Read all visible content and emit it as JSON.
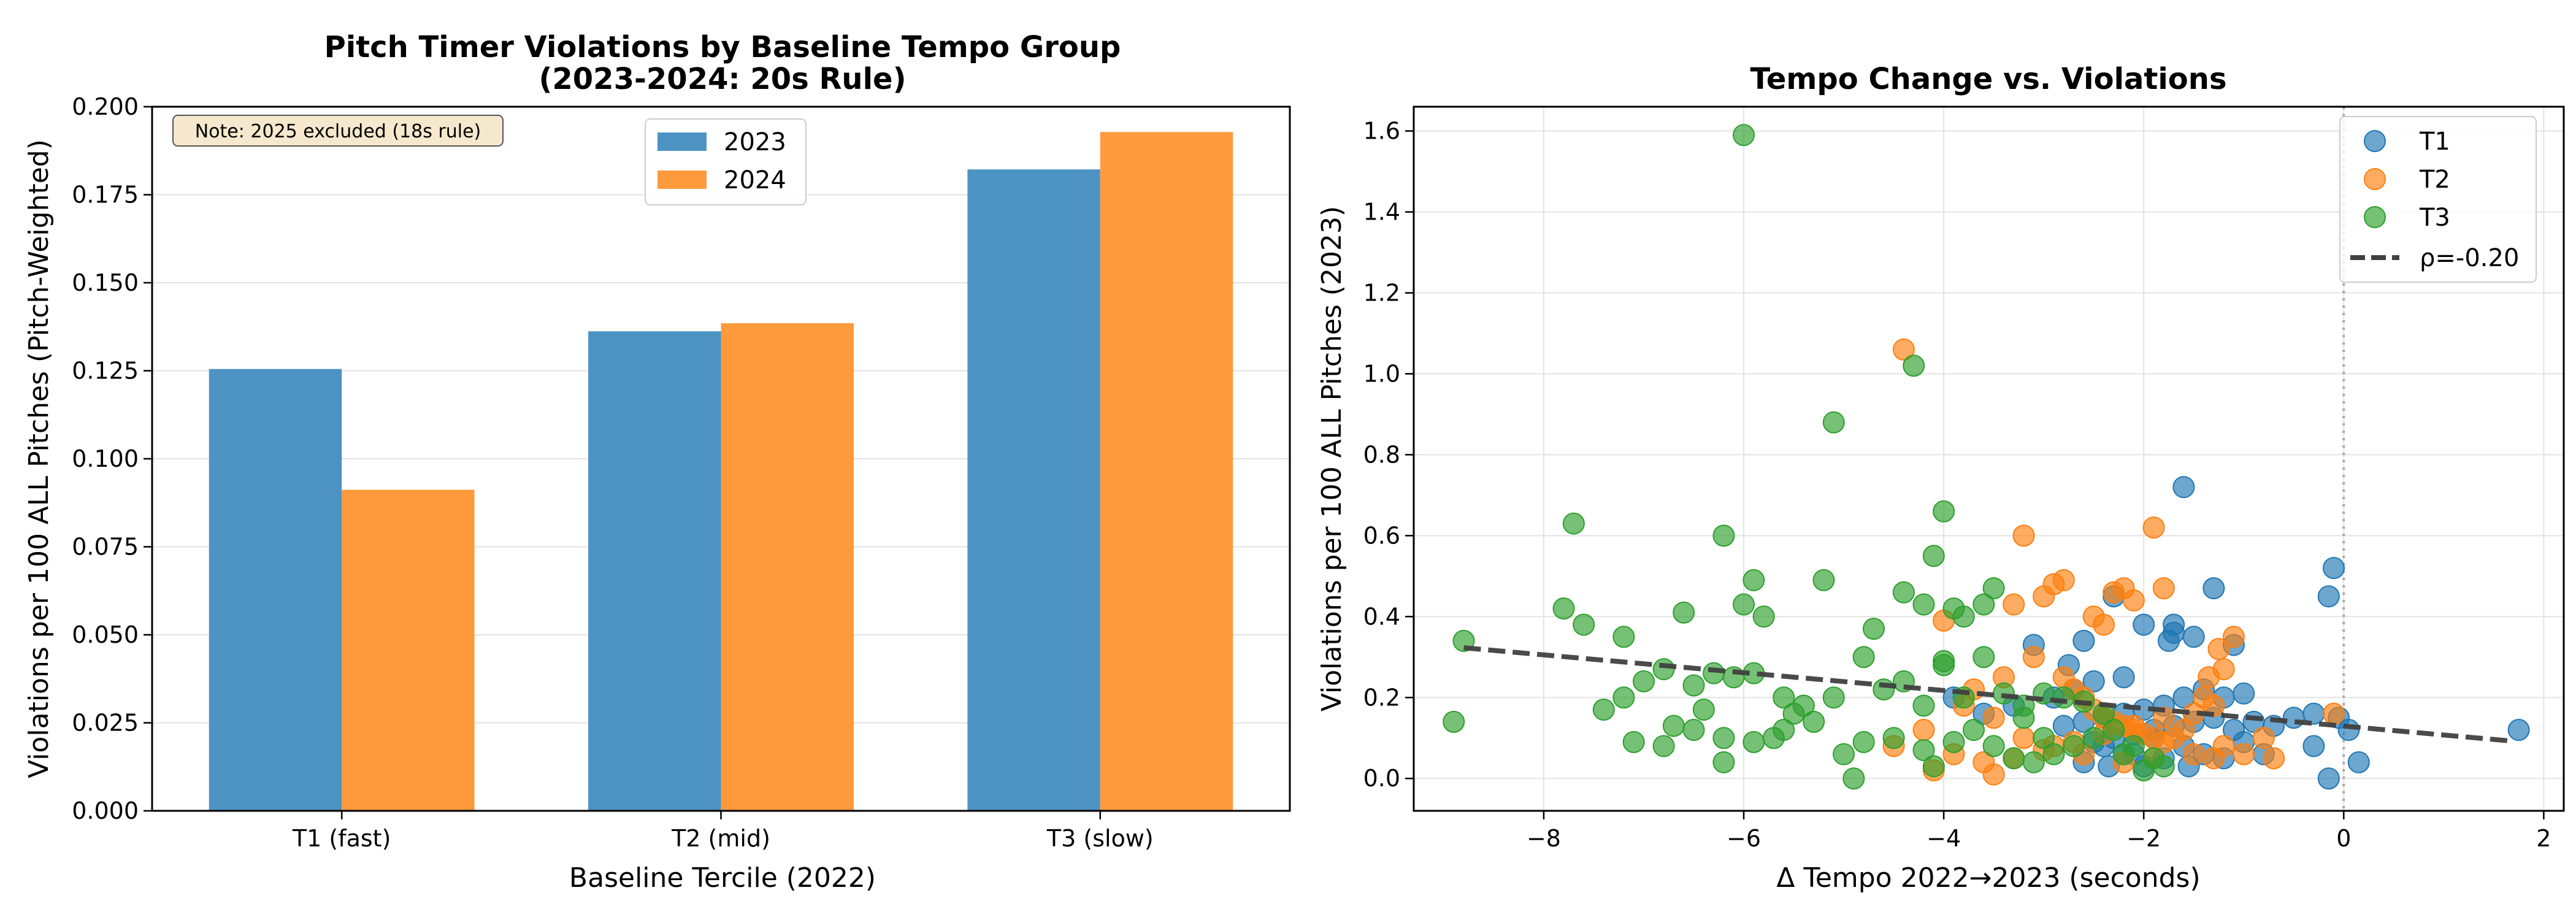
{
  "chart_data": [
    {
      "type": "bar",
      "title": "Pitch Timer Violations by Baseline Tempo Group",
      "subtitle": "(2023-2024: 20s Rule)",
      "xlabel": "Baseline Tercile (2022)",
      "ylabel": "Violations per 100 ALL Pitches (Pitch-Weighted)",
      "categories": [
        "T1 (fast)",
        "T2 (mid)",
        "T3 (slow)"
      ],
      "series": [
        {
          "name": "2023",
          "color": "#4c93c4",
          "values": [
            0.1255,
            0.1362,
            0.1822
          ]
        },
        {
          "name": "2024",
          "color": "#ff9a3c",
          "values": [
            0.0912,
            0.1385,
            0.1928
          ]
        }
      ],
      "ylim": [
        0,
        0.2
      ],
      "yticks": [
        "0.000",
        "0.025",
        "0.050",
        "0.075",
        "0.100",
        "0.125",
        "0.150",
        "0.175",
        "0.200"
      ],
      "grid": true,
      "legend": "upper center",
      "annotation": "Note: 2025 excluded (18s rule)"
    },
    {
      "type": "scatter",
      "title": "Tempo Change vs. Violations",
      "xlabel": "Δ Tempo 2022→2023 (seconds)",
      "ylabel": "Violations per 100 ALL Pitches (2023)",
      "xlim": [
        -9.3,
        2.2
      ],
      "ylim": [
        -0.08,
        1.66
      ],
      "xticks": [
        "−8",
        "−6",
        "−4",
        "−2",
        "0",
        "2"
      ],
      "yticks": [
        "0.0",
        "0.2",
        "0.4",
        "0.6",
        "0.8",
        "1.0",
        "1.2",
        "1.4",
        "1.6"
      ],
      "grid": true,
      "legend": "upper right",
      "series": [
        {
          "name": "T1",
          "color": "#1f77b4",
          "points": [
            [
              -1.6,
              0.72
            ],
            [
              -0.1,
              0.52
            ],
            [
              -0.15,
              0.45
            ],
            [
              -1.3,
              0.47
            ],
            [
              -1.7,
              0.38
            ],
            [
              -1.7,
              0.36
            ],
            [
              -1.75,
              0.34
            ],
            [
              -2.0,
              0.38
            ],
            [
              -2.3,
              0.45
            ],
            [
              -2.6,
              0.34
            ],
            [
              -2.75,
              0.28
            ],
            [
              -3.1,
              0.33
            ],
            [
              -1.5,
              0.35
            ],
            [
              -1.1,
              0.33
            ],
            [
              -1.0,
              0.21
            ],
            [
              -1.2,
              0.2
            ],
            [
              -1.4,
              0.22
            ],
            [
              -1.6,
              0.2
            ],
            [
              -1.8,
              0.18
            ],
            [
              -2.0,
              0.17
            ],
            [
              -2.2,
              0.16
            ],
            [
              -2.4,
              0.15
            ],
            [
              -2.6,
              0.14
            ],
            [
              -2.8,
              0.13
            ],
            [
              -1.3,
              0.15
            ],
            [
              -1.5,
              0.14
            ],
            [
              -1.7,
              0.13
            ],
            [
              -1.9,
              0.12
            ],
            [
              -2.1,
              0.11
            ],
            [
              -2.3,
              0.1
            ],
            [
              -2.5,
              0.09
            ],
            [
              -1.1,
              0.12
            ],
            [
              -0.9,
              0.14
            ],
            [
              -0.7,
              0.13
            ],
            [
              -0.5,
              0.15
            ],
            [
              -0.3,
              0.16
            ],
            [
              -0.05,
              0.15
            ],
            [
              0.05,
              0.12
            ],
            [
              0.15,
              0.04
            ],
            [
              -0.15,
              0.0
            ],
            [
              -0.3,
              0.08
            ],
            [
              -1.6,
              0.08
            ],
            [
              -1.8,
              0.05
            ],
            [
              -2.0,
              0.03
            ],
            [
              -2.2,
              0.06
            ],
            [
              -2.4,
              0.08
            ],
            [
              -2.6,
              0.04
            ],
            [
              -1.4,
              0.06
            ],
            [
              -1.2,
              0.05
            ],
            [
              -1.0,
              0.09
            ],
            [
              -0.8,
              0.06
            ],
            [
              -2.9,
              0.2
            ],
            [
              -3.3,
              0.18
            ],
            [
              -3.6,
              0.16
            ],
            [
              -3.9,
              0.2
            ],
            [
              -2.7,
              0.22
            ],
            [
              -2.5,
              0.24
            ],
            [
              -2.2,
              0.25
            ],
            [
              -1.9,
              0.1
            ],
            [
              -2.1,
              0.06
            ],
            [
              -2.35,
              0.03
            ],
            [
              -1.55,
              0.03
            ],
            [
              1.75,
              0.12
            ]
          ]
        },
        {
          "name": "T2",
          "color": "#ff7f0e",
          "points": [
            [
              -4.4,
              1.06
            ],
            [
              -1.9,
              0.62
            ],
            [
              -3.2,
              0.6
            ],
            [
              -2.8,
              0.49
            ],
            [
              -2.2,
              0.47
            ],
            [
              -1.8,
              0.47
            ],
            [
              -2.3,
              0.46
            ],
            [
              -2.1,
              0.44
            ],
            [
              -3.0,
              0.45
            ],
            [
              -2.9,
              0.48
            ],
            [
              -3.3,
              0.43
            ],
            [
              -2.5,
              0.4
            ],
            [
              -2.4,
              0.38
            ],
            [
              -4.0,
              0.39
            ],
            [
              -3.1,
              0.3
            ],
            [
              -2.8,
              0.25
            ],
            [
              -2.7,
              0.22
            ],
            [
              -2.6,
              0.2
            ],
            [
              -2.5,
              0.17
            ],
            [
              -2.4,
              0.15
            ],
            [
              -2.3,
              0.14
            ],
            [
              -2.2,
              0.13
            ],
            [
              -2.1,
              0.12
            ],
            [
              -2.0,
              0.11
            ],
            [
              -1.9,
              0.1
            ],
            [
              -1.8,
              0.09
            ],
            [
              -1.7,
              0.1
            ],
            [
              -1.6,
              0.12
            ],
            [
              -1.4,
              0.2
            ],
            [
              -1.3,
              0.18
            ],
            [
              -1.2,
              0.27
            ],
            [
              -1.1,
              0.35
            ],
            [
              -0.8,
              0.1
            ],
            [
              -0.7,
              0.05
            ],
            [
              -1.0,
              0.06
            ],
            [
              -1.2,
              0.08
            ],
            [
              -1.5,
              0.06
            ],
            [
              -1.9,
              0.05
            ],
            [
              -2.2,
              0.04
            ],
            [
              -2.6,
              0.06
            ],
            [
              -2.9,
              0.08
            ],
            [
              -3.2,
              0.1
            ],
            [
              -3.5,
              0.15
            ],
            [
              -3.8,
              0.18
            ],
            [
              -4.2,
              0.12
            ],
            [
              -4.5,
              0.08
            ],
            [
              -3.9,
              0.06
            ],
            [
              -3.6,
              0.04
            ],
            [
              -3.3,
              0.05
            ],
            [
              -3.0,
              0.07
            ],
            [
              -2.7,
              0.09
            ],
            [
              -2.4,
              0.11
            ],
            [
              -2.1,
              0.13
            ],
            [
              -1.8,
              0.15
            ],
            [
              -1.5,
              0.16
            ],
            [
              -1.35,
              0.25
            ],
            [
              -1.25,
              0.32
            ],
            [
              -3.4,
              0.25
            ],
            [
              -3.7,
              0.22
            ],
            [
              -4.1,
              0.02
            ],
            [
              -3.5,
              0.01
            ],
            [
              -0.1,
              0.16
            ],
            [
              -1.3,
              0.05
            ]
          ]
        },
        {
          "name": "T3",
          "color": "#2ca02c",
          "points": [
            [
              -6.0,
              1.59
            ],
            [
              -4.3,
              1.02
            ],
            [
              -5.1,
              0.88
            ],
            [
              -7.7,
              0.63
            ],
            [
              -4.0,
              0.66
            ],
            [
              -6.2,
              0.6
            ],
            [
              -4.1,
              0.55
            ],
            [
              -5.9,
              0.49
            ],
            [
              -5.2,
              0.49
            ],
            [
              -7.8,
              0.42
            ],
            [
              -8.8,
              0.34
            ],
            [
              -7.6,
              0.38
            ],
            [
              -6.6,
              0.41
            ],
            [
              -6.0,
              0.43
            ],
            [
              -5.8,
              0.4
            ],
            [
              -4.7,
              0.37
            ],
            [
              -4.4,
              0.46
            ],
            [
              -4.2,
              0.43
            ],
            [
              -3.9,
              0.42
            ],
            [
              -3.5,
              0.47
            ],
            [
              -3.6,
              0.43
            ],
            [
              -3.8,
              0.4
            ],
            [
              -7.2,
              0.35
            ],
            [
              -6.8,
              0.27
            ],
            [
              -6.5,
              0.23
            ],
            [
              -6.3,
              0.26
            ],
            [
              -6.1,
              0.25
            ],
            [
              -5.9,
              0.26
            ],
            [
              -5.6,
              0.2
            ],
            [
              -5.4,
              0.18
            ],
            [
              -5.1,
              0.2
            ],
            [
              -4.8,
              0.3
            ],
            [
              -4.6,
              0.22
            ],
            [
              -4.4,
              0.24
            ],
            [
              -4.2,
              0.18
            ],
            [
              -4.0,
              0.28
            ],
            [
              -3.8,
              0.2
            ],
            [
              -3.6,
              0.3
            ],
            [
              -3.4,
              0.21
            ],
            [
              -3.2,
              0.18
            ],
            [
              -3.0,
              0.21
            ],
            [
              -2.8,
              0.2
            ],
            [
              -2.6,
              0.19
            ],
            [
              -7.0,
              0.24
            ],
            [
              -7.2,
              0.2
            ],
            [
              -7.4,
              0.17
            ],
            [
              -8.9,
              0.14
            ],
            [
              -7.1,
              0.09
            ],
            [
              -6.8,
              0.08
            ],
            [
              -6.5,
              0.12
            ],
            [
              -6.2,
              0.1
            ],
            [
              -5.9,
              0.09
            ],
            [
              -5.6,
              0.12
            ],
            [
              -5.3,
              0.14
            ],
            [
              -5.0,
              0.06
            ],
            [
              -4.8,
              0.09
            ],
            [
              -4.5,
              0.1
            ],
            [
              -4.2,
              0.07
            ],
            [
              -3.9,
              0.09
            ],
            [
              -3.7,
              0.12
            ],
            [
              -3.5,
              0.08
            ],
            [
              -3.3,
              0.05
            ],
            [
              -3.1,
              0.04
            ],
            [
              -2.9,
              0.06
            ],
            [
              -2.7,
              0.08
            ],
            [
              -2.5,
              0.1
            ],
            [
              -2.3,
              0.12
            ],
            [
              -2.1,
              0.08
            ],
            [
              -1.9,
              0.05
            ],
            [
              -1.8,
              0.03
            ],
            [
              -2.0,
              0.02
            ],
            [
              -6.2,
              0.04
            ],
            [
              -4.9,
              0.0
            ],
            [
              -4.1,
              0.03
            ],
            [
              -3.0,
              0.1
            ],
            [
              -2.2,
              0.06
            ],
            [
              -5.5,
              0.16
            ],
            [
              -6.7,
              0.13
            ],
            [
              -3.2,
              0.15
            ],
            [
              -2.4,
              0.16
            ],
            [
              -4.0,
              0.29
            ],
            [
              -6.4,
              0.17
            ],
            [
              -5.7,
              0.1
            ]
          ]
        }
      ],
      "trend": {
        "name": "ρ=-0.20",
        "color": "#404040",
        "x": [
          -8.8,
          1.7
        ],
        "y": [
          0.323,
          0.092
        ]
      },
      "reference_line": {
        "x": 0
      }
    }
  ]
}
